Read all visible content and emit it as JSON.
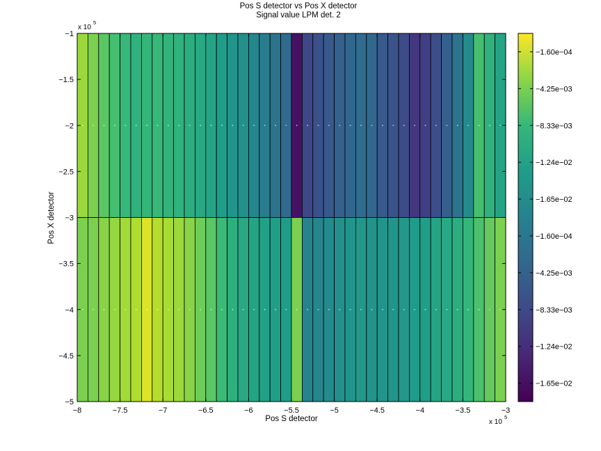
{
  "chart_data": {
    "type": "heatmap",
    "title": "Pos S detector vs Pos X detector",
    "subtitle": "Signal value LPM det. 2",
    "xlabel": "Pos S detector",
    "ylabel": "Pos X detector",
    "x_multiplier_label": "x 10",
    "x_multiplier_exp": "5",
    "y_multiplier_label": "x 10",
    "y_multiplier_exp": "5",
    "xlim": [
      -800000,
      -300000
    ],
    "ylim": [
      -500000,
      -100000
    ],
    "x_ticks": [
      -800000,
      -750000,
      -700000,
      -650000,
      -600000,
      -550000,
      -500000,
      -450000,
      -400000,
      -350000,
      -300000
    ],
    "x_tick_labels": [
      "−8",
      "−7.5",
      "−7",
      "−6.5",
      "−6",
      "−5.5",
      "−5",
      "−4.5",
      "−4",
      "−3.5",
      "−3"
    ],
    "y_ticks": [
      -100000,
      -150000,
      -200000,
      -250000,
      -300000,
      -350000,
      -400000,
      -450000,
      -500000
    ],
    "y_tick_labels": [
      "−1",
      "−1.5",
      "−2",
      "−2.5",
      "−3",
      "−3.5",
      "−4",
      "−4.5",
      "−5"
    ],
    "columns": 40,
    "rows": [
      {
        "y_range": [
          -300000,
          -100000
        ],
        "y_center": -200000,
        "values": [
          0.85,
          0.8,
          0.74,
          0.7,
          0.67,
          0.64,
          0.66,
          0.67,
          0.65,
          0.64,
          0.62,
          0.6,
          0.58,
          0.55,
          0.52,
          0.5,
          0.46,
          0.42,
          0.38,
          0.34,
          0.05,
          0.22,
          0.25,
          0.28,
          0.31,
          0.33,
          0.35,
          0.33,
          0.28,
          0.26,
          0.23,
          0.16,
          0.19,
          0.24,
          0.3,
          0.38,
          0.48,
          0.7,
          0.64,
          0.58
        ]
      },
      {
        "y_range": [
          -500000,
          -300000
        ],
        "y_center": -400000,
        "values": [
          0.8,
          0.8,
          0.82,
          0.84,
          0.86,
          0.88,
          0.95,
          0.89,
          0.87,
          0.85,
          0.82,
          0.78,
          0.74,
          0.68,
          0.63,
          0.6,
          0.58,
          0.57,
          0.56,
          0.55,
          0.8,
          0.45,
          0.46,
          0.48,
          0.5,
          0.52,
          0.53,
          0.52,
          0.52,
          0.52,
          0.53,
          0.54,
          0.56,
          0.58,
          0.6,
          0.62,
          0.66,
          0.71,
          0.76,
          0.8
        ]
      }
    ],
    "colorbar": {
      "colormap": "viridis",
      "tick_labels": [
        "−1.60e−04",
        "−4.25e−03",
        "−8.33e−03",
        "−1.24e−02",
        "−1.65e−02",
        "−1.60e−04",
        "−4.25e−03",
        "−8.33e−03",
        "−1.24e−02",
        "−1.65e−02"
      ]
    },
    "grid": false,
    "legend": "none"
  }
}
